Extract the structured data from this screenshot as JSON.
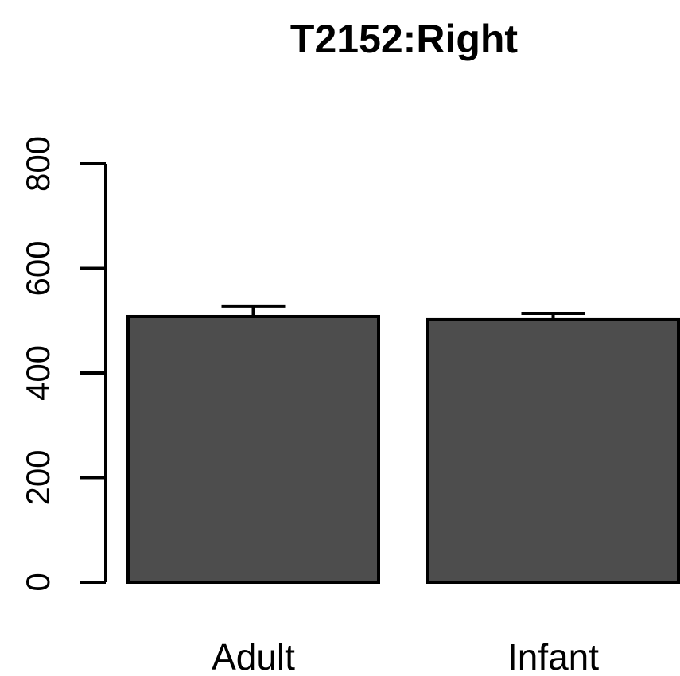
{
  "chart_data": {
    "type": "bar",
    "title": "T2152:Right",
    "xlabel": "",
    "ylabel": "",
    "categories": [
      "Adult",
      "Infant"
    ],
    "values": [
      508,
      502
    ],
    "error_upper": [
      528,
      514
    ],
    "ylim": [
      0,
      800
    ],
    "yticks": [
      0,
      200,
      400,
      600,
      800
    ],
    "ytick_labels": [
      "0",
      "200",
      "400",
      "600",
      "800"
    ],
    "grid": false,
    "legend": "none",
    "colors": {
      "bar_fill": "#4d4d4d",
      "bar_stroke": "#000000",
      "axis": "#000000",
      "background": "#ffffff"
    }
  }
}
